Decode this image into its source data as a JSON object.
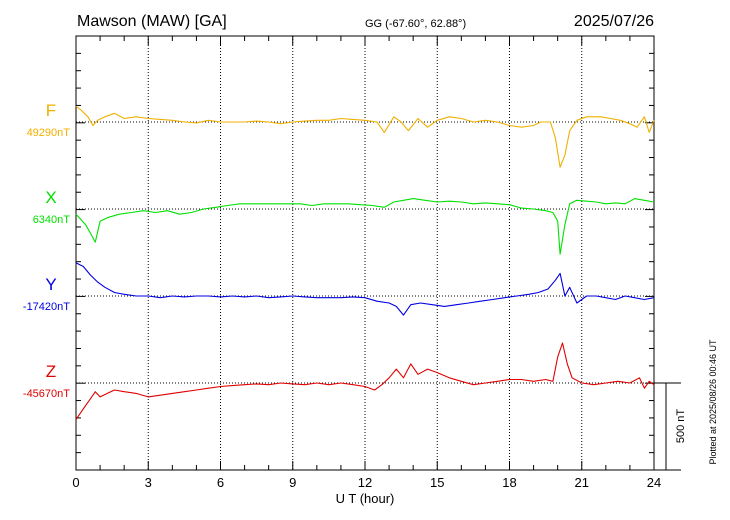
{
  "header": {
    "station": "Mawson (MAW)  [GA]",
    "coords": "GG (-67.60°,  62.88°)",
    "date": "2025/07/26"
  },
  "footer_note": "Plotted at 2025/08/26 00:46 UT",
  "chart_data": {
    "type": "line",
    "title": "Mawson (MAW)  [GA]",
    "xlabel": "U T (hour)",
    "xlim": [
      0,
      24
    ],
    "xticks": [
      "0",
      "3",
      "6",
      "9",
      "12",
      "15",
      "18",
      "21",
      "24"
    ],
    "grid": true,
    "scale_bar": {
      "label": "500 nT",
      "value_nT": 500
    },
    "series": [
      {
        "name": "F",
        "baseline_label": "49290nT",
        "baseline_nT": 49290,
        "color": "#f0b000",
        "points": [
          [
            0,
            49380
          ],
          [
            0.2,
            49360
          ],
          [
            0.5,
            49320
          ],
          [
            0.7,
            49270
          ],
          [
            0.9,
            49300
          ],
          [
            1.2,
            49320
          ],
          [
            1.6,
            49340
          ],
          [
            2.0,
            49310
          ],
          [
            2.5,
            49320
          ],
          [
            3.0,
            49310
          ],
          [
            3.5,
            49305
          ],
          [
            4.0,
            49300
          ],
          [
            4.5,
            49290
          ],
          [
            5.0,
            49285
          ],
          [
            5.5,
            49300
          ],
          [
            6.0,
            49290
          ],
          [
            6.5,
            49290
          ],
          [
            7.0,
            49290
          ],
          [
            7.5,
            49295
          ],
          [
            8.0,
            49290
          ],
          [
            8.5,
            49280
          ],
          [
            9.0,
            49290
          ],
          [
            9.5,
            49295
          ],
          [
            10.0,
            49300
          ],
          [
            10.5,
            49300
          ],
          [
            11.0,
            49310
          ],
          [
            11.5,
            49305
          ],
          [
            12.0,
            49300
          ],
          [
            12.5,
            49290
          ],
          [
            12.8,
            49230
          ],
          [
            13.2,
            49320
          ],
          [
            13.5,
            49290
          ],
          [
            13.8,
            49240
          ],
          [
            14.2,
            49310
          ],
          [
            14.6,
            49260
          ],
          [
            15.0,
            49300
          ],
          [
            15.5,
            49320
          ],
          [
            16.0,
            49310
          ],
          [
            16.5,
            49290
          ],
          [
            17.0,
            49300
          ],
          [
            17.5,
            49290
          ],
          [
            18.0,
            49270
          ],
          [
            18.5,
            49260
          ],
          [
            19.0,
            49270
          ],
          [
            19.3,
            49290
          ],
          [
            19.7,
            49290
          ],
          [
            19.9,
            49200
          ],
          [
            20.1,
            49030
          ],
          [
            20.3,
            49100
          ],
          [
            20.5,
            49240
          ],
          [
            20.8,
            49300
          ],
          [
            21.2,
            49320
          ],
          [
            21.8,
            49320
          ],
          [
            22.2,
            49310
          ],
          [
            22.6,
            49300
          ],
          [
            23.0,
            49280
          ],
          [
            23.3,
            49260
          ],
          [
            23.6,
            49320
          ],
          [
            23.8,
            49230
          ],
          [
            24,
            49300
          ]
        ]
      },
      {
        "name": "X",
        "baseline_label": "6340nT",
        "baseline_nT": 6340,
        "color": "#00e000",
        "points": [
          [
            0,
            6310
          ],
          [
            0.2,
            6280
          ],
          [
            0.4,
            6250
          ],
          [
            0.6,
            6200
          ],
          [
            0.8,
            6150
          ],
          [
            1.0,
            6270
          ],
          [
            1.3,
            6290
          ],
          [
            1.8,
            6310
          ],
          [
            2.3,
            6320
          ],
          [
            2.8,
            6330
          ],
          [
            3.3,
            6320
          ],
          [
            3.8,
            6330
          ],
          [
            4.3,
            6310
          ],
          [
            4.8,
            6320
          ],
          [
            5.3,
            6340
          ],
          [
            5.8,
            6350
          ],
          [
            6.3,
            6360
          ],
          [
            6.8,
            6370
          ],
          [
            7.3,
            6370
          ],
          [
            7.8,
            6370
          ],
          [
            8.3,
            6370
          ],
          [
            8.8,
            6370
          ],
          [
            9.3,
            6370
          ],
          [
            9.8,
            6360
          ],
          [
            10.3,
            6370
          ],
          [
            10.8,
            6370
          ],
          [
            11.3,
            6370
          ],
          [
            11.8,
            6365
          ],
          [
            12.3,
            6360
          ],
          [
            12.8,
            6350
          ],
          [
            13.2,
            6380
          ],
          [
            13.6,
            6390
          ],
          [
            14.0,
            6400
          ],
          [
            14.5,
            6390
          ],
          [
            15.0,
            6380
          ],
          [
            15.5,
            6385
          ],
          [
            16.0,
            6380
          ],
          [
            16.5,
            6370
          ],
          [
            17.0,
            6375
          ],
          [
            17.5,
            6370
          ],
          [
            18.0,
            6365
          ],
          [
            18.5,
            6345
          ],
          [
            19.0,
            6340
          ],
          [
            19.5,
            6330
          ],
          [
            19.8,
            6320
          ],
          [
            20.0,
            6270
          ],
          [
            20.1,
            6080
          ],
          [
            20.3,
            6250
          ],
          [
            20.5,
            6370
          ],
          [
            20.8,
            6390
          ],
          [
            21.2,
            6385
          ],
          [
            21.6,
            6380
          ],
          [
            22.0,
            6370
          ],
          [
            22.4,
            6375
          ],
          [
            22.8,
            6370
          ],
          [
            23.2,
            6400
          ],
          [
            23.6,
            6390
          ],
          [
            24,
            6380
          ]
        ]
      },
      {
        "name": "Y",
        "baseline_label": "-17420nT",
        "baseline_nT": -17420,
        "color": "#0000e0",
        "points": [
          [
            0,
            -17230
          ],
          [
            0.3,
            -17250
          ],
          [
            0.6,
            -17300
          ],
          [
            0.9,
            -17340
          ],
          [
            1.2,
            -17370
          ],
          [
            1.6,
            -17400
          ],
          [
            2.0,
            -17410
          ],
          [
            2.5,
            -17420
          ],
          [
            3.0,
            -17420
          ],
          [
            3.5,
            -17430
          ],
          [
            4.0,
            -17420
          ],
          [
            4.5,
            -17425
          ],
          [
            5.0,
            -17420
          ],
          [
            5.5,
            -17420
          ],
          [
            6.0,
            -17425
          ],
          [
            6.5,
            -17420
          ],
          [
            7.0,
            -17425
          ],
          [
            7.5,
            -17420
          ],
          [
            8.0,
            -17430
          ],
          [
            8.5,
            -17425
          ],
          [
            9.0,
            -17420
          ],
          [
            9.5,
            -17425
          ],
          [
            10.0,
            -17430
          ],
          [
            10.5,
            -17430
          ],
          [
            11.0,
            -17430
          ],
          [
            11.5,
            -17425
          ],
          [
            12.0,
            -17430
          ],
          [
            12.5,
            -17450
          ],
          [
            13.0,
            -17460
          ],
          [
            13.3,
            -17480
          ],
          [
            13.6,
            -17530
          ],
          [
            13.9,
            -17470
          ],
          [
            14.3,
            -17460
          ],
          [
            14.8,
            -17470
          ],
          [
            15.3,
            -17480
          ],
          [
            15.8,
            -17470
          ],
          [
            16.3,
            -17460
          ],
          [
            16.8,
            -17450
          ],
          [
            17.3,
            -17440
          ],
          [
            17.8,
            -17430
          ],
          [
            18.3,
            -17420
          ],
          [
            18.8,
            -17410
          ],
          [
            19.2,
            -17400
          ],
          [
            19.6,
            -17380
          ],
          [
            19.9,
            -17330
          ],
          [
            20.1,
            -17290
          ],
          [
            20.3,
            -17420
          ],
          [
            20.5,
            -17370
          ],
          [
            20.8,
            -17460
          ],
          [
            21.2,
            -17420
          ],
          [
            21.6,
            -17420
          ],
          [
            22.0,
            -17430
          ],
          [
            22.4,
            -17440
          ],
          [
            22.8,
            -17420
          ],
          [
            23.2,
            -17430
          ],
          [
            23.6,
            -17440
          ],
          [
            24,
            -17430
          ]
        ]
      },
      {
        "name": "Z",
        "baseline_label": "-45670nT",
        "baseline_nT": -45670,
        "color": "#e00000",
        "points": [
          [
            0,
            -45880
          ],
          [
            0.2,
            -45840
          ],
          [
            0.4,
            -45800
          ],
          [
            0.6,
            -45760
          ],
          [
            0.8,
            -45720
          ],
          [
            1.0,
            -45750
          ],
          [
            1.3,
            -45730
          ],
          [
            1.6,
            -45710
          ],
          [
            2.0,
            -45720
          ],
          [
            2.5,
            -45730
          ],
          [
            3.0,
            -45750
          ],
          [
            3.5,
            -45740
          ],
          [
            4.0,
            -45730
          ],
          [
            4.5,
            -45720
          ],
          [
            5.0,
            -45710
          ],
          [
            5.5,
            -45700
          ],
          [
            6.0,
            -45690
          ],
          [
            6.5,
            -45685
          ],
          [
            7.0,
            -45680
          ],
          [
            7.5,
            -45675
          ],
          [
            8.0,
            -45680
          ],
          [
            8.5,
            -45670
          ],
          [
            9.0,
            -45675
          ],
          [
            9.5,
            -45680
          ],
          [
            10.0,
            -45670
          ],
          [
            10.5,
            -45680
          ],
          [
            11.0,
            -45670
          ],
          [
            11.5,
            -45680
          ],
          [
            12.0,
            -45690
          ],
          [
            12.4,
            -45710
          ],
          [
            12.7,
            -45680
          ],
          [
            13.0,
            -45640
          ],
          [
            13.3,
            -45590
          ],
          [
            13.6,
            -45640
          ],
          [
            13.9,
            -45560
          ],
          [
            14.2,
            -45620
          ],
          [
            14.6,
            -45590
          ],
          [
            15.0,
            -45610
          ],
          [
            15.5,
            -45640
          ],
          [
            16.0,
            -45660
          ],
          [
            16.5,
            -45680
          ],
          [
            17.0,
            -45670
          ],
          [
            17.5,
            -45660
          ],
          [
            18.0,
            -45650
          ],
          [
            18.5,
            -45650
          ],
          [
            19.0,
            -45660
          ],
          [
            19.5,
            -45650
          ],
          [
            19.8,
            -45660
          ],
          [
            20.0,
            -45520
          ],
          [
            20.2,
            -45440
          ],
          [
            20.4,
            -45560
          ],
          [
            20.6,
            -45640
          ],
          [
            21.0,
            -45670
          ],
          [
            21.5,
            -45680
          ],
          [
            22.0,
            -45670
          ],
          [
            22.5,
            -45660
          ],
          [
            23.0,
            -45670
          ],
          [
            23.4,
            -45640
          ],
          [
            23.6,
            -45700
          ],
          [
            23.8,
            -45660
          ],
          [
            24,
            -45680
          ]
        ]
      }
    ]
  }
}
